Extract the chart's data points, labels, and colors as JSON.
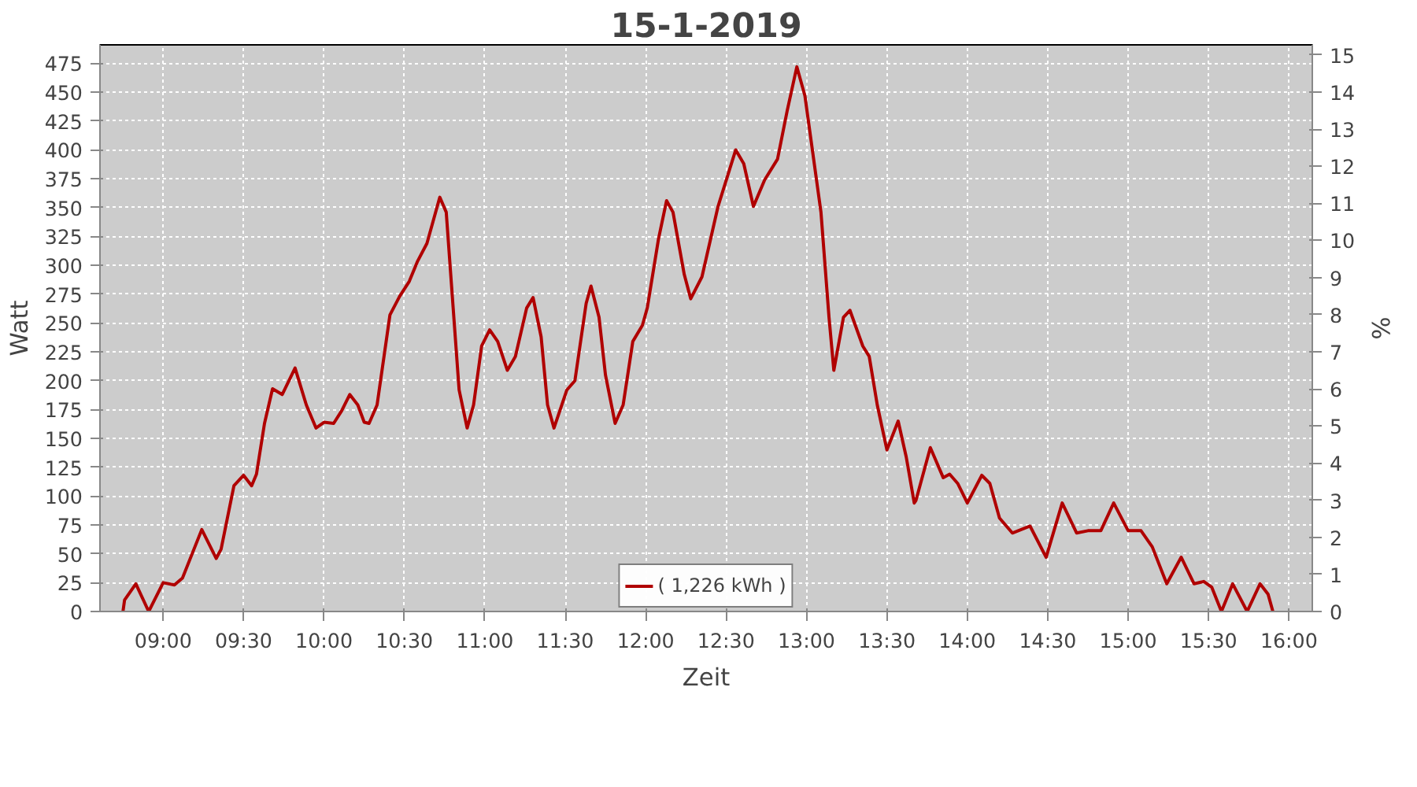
{
  "chart_data": {
    "type": "line",
    "title": "15-1-2019",
    "xlabel": "Zeit",
    "ylabel": "Watt",
    "y2label": "%",
    "x": [
      8.75,
      8.76,
      8.83,
      8.91,
      9.0,
      9.07,
      9.12,
      9.24,
      9.33,
      9.36,
      9.44,
      9.5,
      9.55,
      9.58,
      9.63,
      9.68,
      9.74,
      9.82,
      9.89,
      9.95,
      10.0,
      10.06,
      10.11,
      10.16,
      10.21,
      10.25,
      10.28,
      10.33,
      10.41,
      10.47,
      10.53,
      10.58,
      10.64,
      10.72,
      10.76,
      10.79,
      10.84,
      10.89,
      10.93,
      10.98,
      11.03,
      11.08,
      11.14,
      11.19,
      11.26,
      11.3,
      11.35,
      11.39,
      11.43,
      11.51,
      11.56,
      11.63,
      11.66,
      11.71,
      11.75,
      11.81,
      11.86,
      11.92,
      11.98,
      12.01,
      12.08,
      12.13,
      12.17,
      12.24,
      12.28,
      12.35,
      12.45,
      12.56,
      12.61,
      12.67,
      12.74,
      12.82,
      12.88,
      12.94,
      12.99,
      13.09,
      13.14,
      13.17,
      13.23,
      13.27,
      13.35,
      13.39,
      13.44,
      13.5,
      13.57,
      13.62,
      13.67,
      13.68,
      13.77,
      13.85,
      13.89,
      13.94,
      14.0,
      14.09,
      14.14,
      14.2,
      14.28,
      14.39,
      14.49,
      14.59,
      14.68,
      14.75,
      14.83,
      14.91,
      15.0,
      15.08,
      15.15,
      15.24,
      15.33,
      15.41,
      15.47,
      15.52,
      15.58,
      15.65,
      15.74,
      15.82,
      15.87,
      15.9
    ],
    "series": [
      {
        "name": "( 1,226 kWh )",
        "color": "#b00000",
        "values": [
          0,
          10,
          24,
          0,
          25,
          23,
          29,
          71,
          46,
          54,
          109,
          118,
          109,
          119,
          163,
          193,
          188,
          211,
          179,
          159,
          164,
          163,
          174,
          188,
          179,
          164,
          163,
          179,
          257,
          273,
          286,
          303,
          319,
          359,
          346,
          288,
          192,
          159,
          179,
          230,
          244,
          234,
          209,
          221,
          263,
          272,
          238,
          179,
          159,
          192,
          200,
          267,
          282,
          255,
          205,
          163,
          179,
          234,
          248,
          263,
          323,
          356,
          346,
          292,
          271,
          290,
          351,
          400,
          388,
          351,
          374,
          392,
          434,
          472,
          447,
          346,
          255,
          209,
          255,
          261,
          230,
          221,
          179,
          140,
          165,
          134,
          94,
          96,
          142,
          116,
          119,
          111,
          94,
          118,
          111,
          81,
          68,
          74,
          47,
          94,
          68,
          70,
          70,
          94,
          70,
          70,
          56,
          24,
          47,
          24,
          26,
          21,
          0,
          24,
          0,
          24,
          15,
          0
        ]
      }
    ],
    "xlim": [
      8.607,
      16.145
    ],
    "ylim": [
      0,
      491
    ],
    "y2lim": [
      0,
      15.27
    ],
    "xticks": [
      {
        "value": 9,
        "label": "09:00"
      },
      {
        "value": 9.5,
        "label": "09:30"
      },
      {
        "value": 10,
        "label": "10:00"
      },
      {
        "value": 10.5,
        "label": "10:30"
      },
      {
        "value": 11,
        "label": "11:00"
      },
      {
        "value": 11.5,
        "label": "11:30"
      },
      {
        "value": 12,
        "label": "12:00"
      },
      {
        "value": 12.5,
        "label": "12:30"
      },
      {
        "value": 13,
        "label": "13:00"
      },
      {
        "value": 13.5,
        "label": "13:30"
      },
      {
        "value": 14,
        "label": "14:00"
      },
      {
        "value": 14.5,
        "label": "14:30"
      },
      {
        "value": 15,
        "label": "15:00"
      },
      {
        "value": 15.5,
        "label": "15:30"
      },
      {
        "value": 16,
        "label": "16:00"
      }
    ],
    "yticks": [
      0,
      25,
      50,
      75,
      100,
      125,
      150,
      175,
      200,
      225,
      250,
      275,
      300,
      325,
      350,
      375,
      400,
      425,
      450,
      475
    ],
    "y2ticks": [
      0,
      1,
      2,
      3,
      4,
      5,
      6,
      7,
      8,
      9,
      10,
      11,
      12,
      13,
      14,
      15
    ],
    "grid": true,
    "legend": "bottom",
    "line_style": "solid"
  }
}
